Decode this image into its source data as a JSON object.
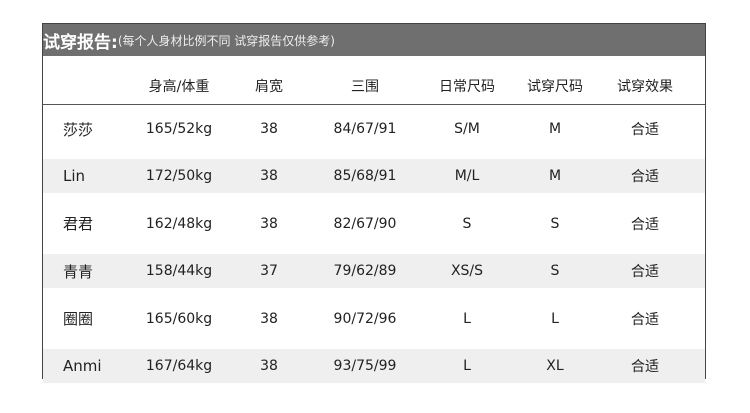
{
  "title": "试穿报告:",
  "subtitle": "(每个人身材比例不同 试穿报告仅供参考)",
  "columns": [
    "",
    "身高/体重",
    "肩宽",
    "三围",
    "日常尺码",
    "试穿尺码",
    "试穿效果"
  ],
  "rows": [
    [
      "莎莎",
      "165/52kg",
      "38",
      "84/67/91",
      "S/M",
      "M",
      "合适"
    ],
    [
      "Lin",
      "172/50kg",
      "38",
      "85/68/91",
      "M/L",
      "M",
      "合适"
    ],
    [
      "君君",
      "162/48kg",
      "38",
      "82/67/90",
      "S",
      "S",
      "合适"
    ],
    [
      "青青",
      "158/44kg",
      "37",
      "79/62/89",
      "XS/S",
      "S",
      "合适"
    ],
    [
      "圈圈",
      "165/60kg",
      "38",
      "90/72/96",
      "L",
      "L",
      "合适"
    ],
    [
      "Anmi",
      "167/64kg",
      "38",
      "93/75/99",
      "L",
      "XL",
      "合适"
    ]
  ],
  "colors": {
    "title_bar": "#6f6f6f",
    "stripe": "#efefef"
  }
}
